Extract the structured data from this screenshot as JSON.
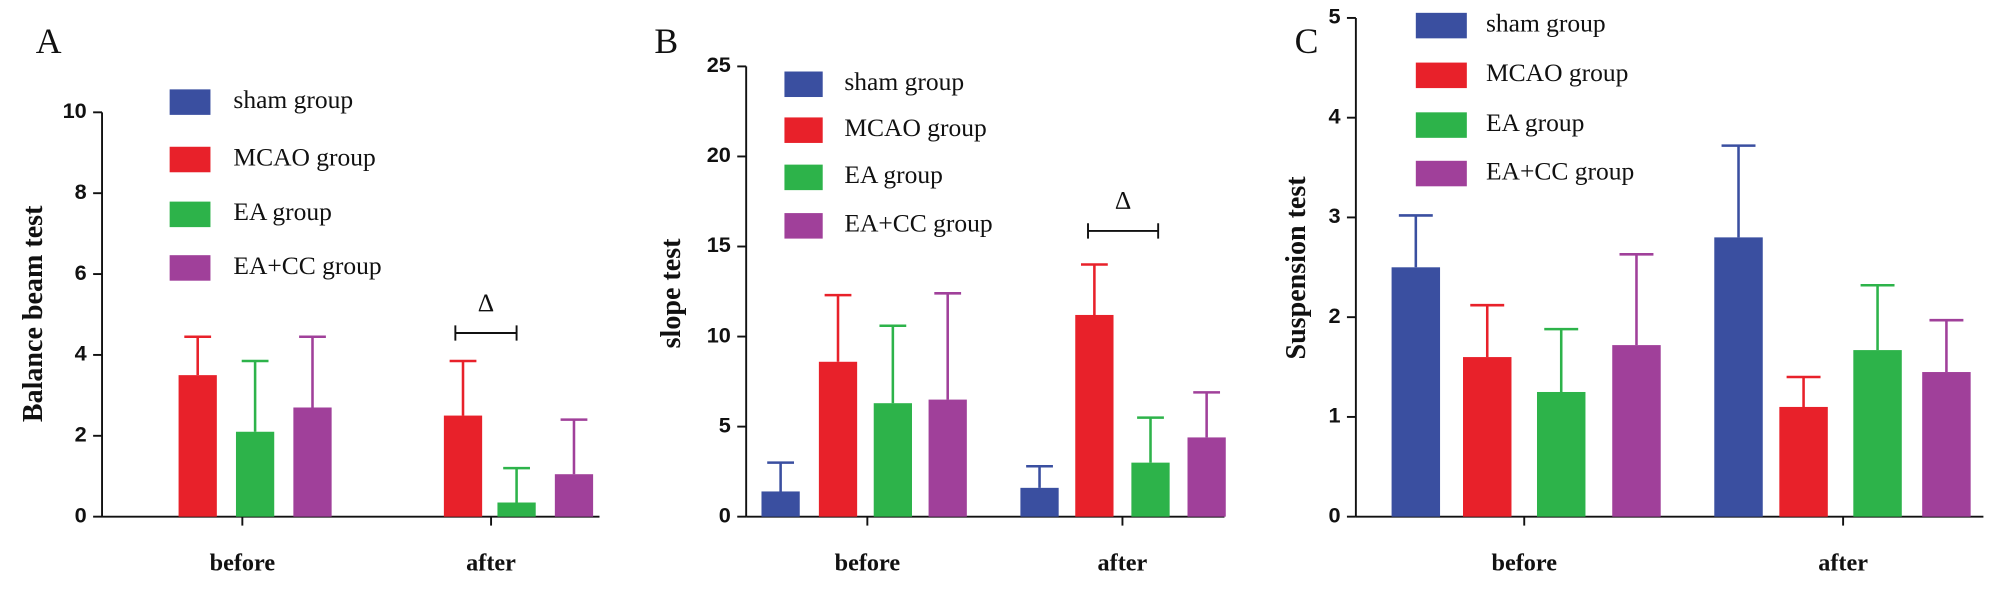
{
  "chart_data": [
    {
      "type": "bar",
      "label": "A",
      "ylabel": "Balance beam test",
      "categories": [
        "before",
        "after"
      ],
      "ylim": [
        0,
        10
      ],
      "yticks": [
        0,
        2,
        4,
        6,
        8,
        10
      ],
      "annotations": [
        "Δ"
      ],
      "series": [
        {
          "name": "sham group",
          "color": "#3a4fa0",
          "values": [
            null,
            null
          ],
          "errors": [
            null,
            null
          ]
        },
        {
          "name": "MCAO group",
          "color": "#e8212a",
          "values": [
            3.5,
            2.5
          ],
          "errors": [
            0.95,
            1.35
          ]
        },
        {
          "name": "EA group",
          "color": "#2db34a",
          "values": [
            2.1,
            0.35
          ],
          "errors": [
            1.75,
            0.85
          ]
        },
        {
          "name": "EA+CC group",
          "color": "#a0409a",
          "values": [
            2.7,
            1.05
          ],
          "errors": [
            1.75,
            1.35
          ]
        }
      ]
    },
    {
      "type": "bar",
      "label": "B",
      "ylabel": "slope test",
      "categories": [
        "before",
        "after"
      ],
      "ylim": [
        0,
        25
      ],
      "yticks": [
        0,
        5,
        10,
        15,
        20,
        25
      ],
      "annotations": [
        "Δ"
      ],
      "series": [
        {
          "name": "sham group",
          "color": "#3a4fa0",
          "values": [
            1.4,
            1.6
          ],
          "errors": [
            1.6,
            1.2
          ]
        },
        {
          "name": "MCAO group",
          "color": "#e8212a",
          "values": [
            8.6,
            11.2
          ],
          "errors": [
            3.7,
            2.8
          ]
        },
        {
          "name": "EA group",
          "color": "#2db34a",
          "values": [
            6.3,
            3.0
          ],
          "errors": [
            4.3,
            2.5
          ]
        },
        {
          "name": "EA+CC group",
          "color": "#a0409a",
          "values": [
            6.5,
            4.4
          ],
          "errors": [
            5.9,
            2.5
          ]
        }
      ]
    },
    {
      "type": "bar",
      "label": "C",
      "ylabel": "Suspension test",
      "categories": [
        "before",
        "after"
      ],
      "ylim": [
        0,
        5
      ],
      "yticks": [
        0,
        1,
        2,
        3,
        4,
        5
      ],
      "annotations": [],
      "series": [
        {
          "name": "sham group",
          "color": "#3a4fa0",
          "values": [
            2.5,
            2.8
          ],
          "errors": [
            0.52,
            0.92
          ]
        },
        {
          "name": "MCAO group",
          "color": "#e8212a",
          "values": [
            1.6,
            1.1
          ],
          "errors": [
            0.52,
            0.3
          ]
        },
        {
          "name": "EA group",
          "color": "#2db34a",
          "values": [
            1.25,
            1.67
          ],
          "errors": [
            0.63,
            0.65
          ]
        },
        {
          "name": "EA+CC group",
          "color": "#a0409a",
          "values": [
            1.72,
            1.45
          ],
          "errors": [
            0.91,
            0.52
          ]
        }
      ]
    }
  ]
}
